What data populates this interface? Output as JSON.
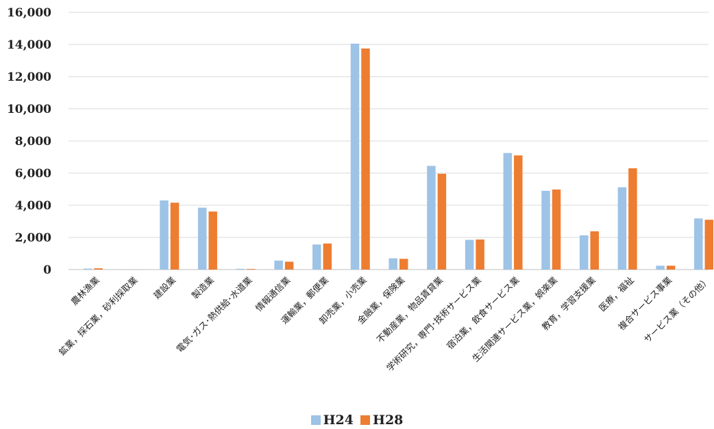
{
  "chart_data": {
    "type": "bar",
    "title": "",
    "xlabel": "",
    "ylabel": "",
    "ylim": [
      0,
      16000
    ],
    "yticks": [
      0,
      2000,
      4000,
      6000,
      8000,
      10000,
      12000,
      14000,
      16000
    ],
    "ytick_labels": [
      "0",
      "2,000",
      "4,000",
      "6,000",
      "8,000",
      "10,000",
      "12,000",
      "14,000",
      "16,000"
    ],
    "grid": true,
    "legend_position": "bottom",
    "categories": [
      "農林漁業",
      "鉱業，採石業，砂利採取業",
      "建設業",
      "製造業",
      "電気･ガス･熱供給･水道業",
      "情報通信業",
      "運輸業，郵便業",
      "卸売業，小売業",
      "金融業，保険業",
      "不動産業，物品賃貸業",
      "学術研究，専門･技術サービス業",
      "宿泊業，飲食サービス業",
      "生活関連サービス業，娯楽業",
      "教育，学習支援業",
      "医療，福祉",
      "複合サービス事業",
      "サービス業（その他）"
    ],
    "series": [
      {
        "name": "H24",
        "color": "#9DC3E6",
        "values": [
          60,
          5,
          4300,
          3850,
          50,
          560,
          1560,
          14050,
          700,
          6450,
          1850,
          7250,
          4900,
          2130,
          5120,
          240,
          3180
        ]
      },
      {
        "name": "H28",
        "color": "#ED7D31",
        "values": [
          80,
          5,
          4160,
          3610,
          40,
          490,
          1620,
          13750,
          670,
          5960,
          1870,
          7100,
          4980,
          2380,
          6300,
          240,
          3100
        ]
      }
    ]
  },
  "legend": {
    "items": [
      {
        "label": "H24",
        "color": "#9DC3E6"
      },
      {
        "label": "H28",
        "color": "#ED7D31"
      }
    ]
  }
}
